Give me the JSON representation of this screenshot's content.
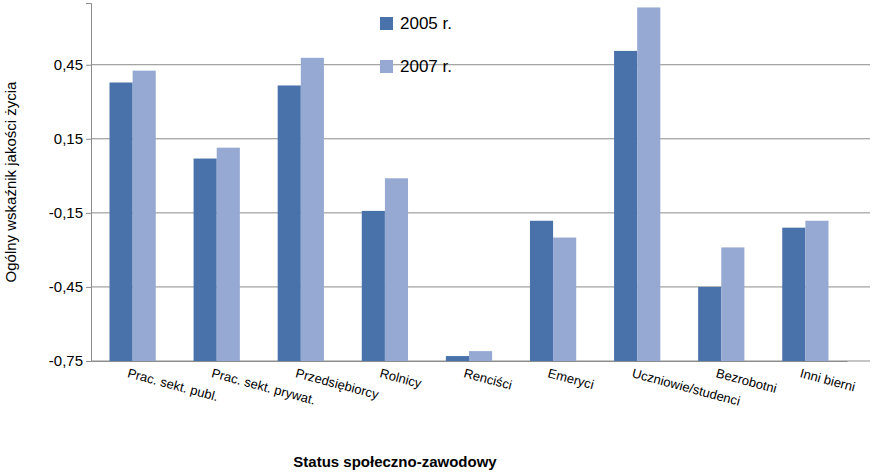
{
  "chart_data": {
    "type": "bar",
    "x_label": "Status społeczno-zawodowy",
    "y_label": "Ogólny wskaźnik jakości życia",
    "categories": [
      "Prac. sekt. publ.",
      "Prac. sekt. prywat.",
      "Przedsiębiorcy",
      "Rolnicy",
      "Renciści",
      "Emeryci",
      "Uczniowie/studenci",
      "Bezrobotni",
      "Inni bierni"
    ],
    "series": [
      {
        "name": "2005 r.",
        "color": "#4a72aa",
        "values": [
          0.378,
          0.07,
          0.366,
          -0.142,
          -0.73,
          -0.182,
          0.506,
          -0.45,
          -0.21
        ]
      },
      {
        "name": "2007 r.",
        "color": "#95a9d2",
        "values": [
          0.426,
          0.114,
          0.478,
          -0.01,
          -0.71,
          -0.25,
          0.682,
          -0.29,
          -0.182
        ]
      }
    ],
    "ylim": [
      -0.75,
      0.7
    ],
    "yticks": [
      {
        "value": -0.75,
        "label": "-0,75"
      },
      {
        "value": -0.45,
        "label": "-0,45"
      },
      {
        "value": -0.15,
        "label": "-0,15"
      },
      {
        "value": 0.15,
        "label": "0,15"
      },
      {
        "value": 0.45,
        "label": "0,45"
      }
    ],
    "grid": true,
    "legend": "top"
  }
}
